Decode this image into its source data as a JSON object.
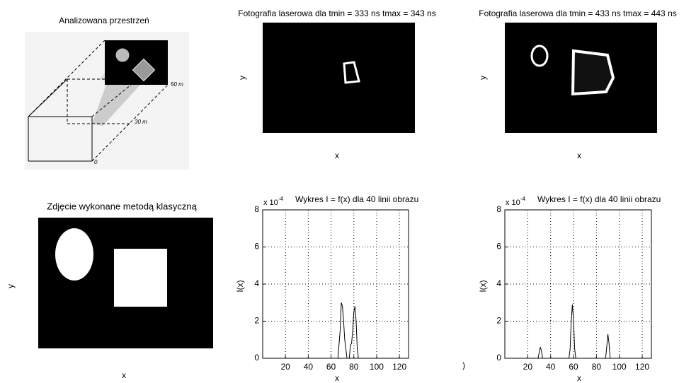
{
  "chart_data": [
    {
      "type": "image",
      "title": "Analizowana przestrzeń",
      "annotations": [
        "50 m",
        "30 m",
        "0"
      ]
    },
    {
      "type": "image",
      "title": "Fotografia laserowa dla tmin = 333 ns tmax = 343 ns",
      "xlabel": "x",
      "ylabel": "y"
    },
    {
      "type": "image",
      "title": "Fotografia laserowa dla tmin = 433 ns tmax = 443 ns",
      "xlabel": "x",
      "ylabel": "y"
    },
    {
      "type": "image",
      "title": "Zdjęcie wykonane metodą klasyczną",
      "xlabel": "x",
      "ylabel": "y"
    },
    {
      "type": "line",
      "title": "Wykres I = f(x) dla 40 linii obrazu",
      "xlabel": "x",
      "ylabel": "I(x)",
      "y_multiplier": {
        "base": "x 10",
        "exponent": "-4"
      },
      "x": [
        1,
        66,
        68,
        69,
        70,
        71,
        72,
        74,
        76,
        77,
        78,
        79,
        80,
        81,
        82,
        83,
        84,
        128
      ],
      "series": [
        {
          "color": "#000000",
          "values": [
            0,
            0,
            1.5,
            3.0,
            2.8,
            2.0,
            1.0,
            0,
            0,
            0.7,
            0.8,
            1.5,
            2.5,
            2.8,
            2.0,
            0.5,
            0,
            0
          ]
        }
      ],
      "xlim": [
        0,
        128
      ],
      "ylim": [
        0,
        8
      ],
      "xticks": [
        20,
        40,
        60,
        80,
        100,
        120
      ],
      "yticks": [
        0,
        2,
        4,
        6,
        8
      ],
      "grid": true
    },
    {
      "type": "line",
      "title": "Wykres I = f(x) dla 40 linii obrazu",
      "xlabel": "x",
      "ylabel": "I(x)",
      "y_multiplier": {
        "base": "x 10",
        "exponent": "-4"
      },
      "x": [
        1,
        29,
        30,
        31,
        32,
        33,
        56,
        57,
        58,
        59,
        60,
        61,
        62,
        88,
        89,
        90,
        91,
        92,
        128
      ],
      "series": [
        {
          "color": "#000000",
          "values": [
            0,
            0,
            0.3,
            0.6,
            0.4,
            0,
            0,
            0.5,
            2.0,
            2.9,
            2.0,
            0.5,
            0,
            0,
            0.6,
            1.3,
            0.8,
            0,
            0
          ]
        }
      ],
      "xlim": [
        0,
        128
      ],
      "ylim": [
        0,
        8
      ],
      "xticks": [
        20,
        40,
        60,
        80,
        100,
        120
      ],
      "yticks": [
        0,
        2,
        4,
        6,
        8
      ],
      "grid": true
    }
  ],
  "artifact": ")"
}
